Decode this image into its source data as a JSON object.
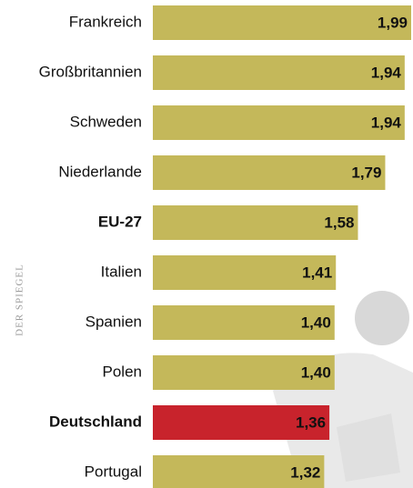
{
  "chart_data": {
    "type": "bar",
    "orientation": "horizontal",
    "source": "DER SPIEGEL",
    "categories": [
      "Frankreich",
      "Großbritannien",
      "Schweden",
      "Niederlande",
      "EU-27",
      "Italien",
      "Spanien",
      "Polen",
      "Deutschland",
      "Portugal"
    ],
    "values": [
      1.99,
      1.94,
      1.94,
      1.79,
      1.58,
      1.41,
      1.4,
      1.4,
      1.36,
      1.32
    ],
    "value_labels": [
      "1,99",
      "1,94",
      "1,94",
      "1,79",
      "1,58",
      "1,41",
      "1,40",
      "1,40",
      "1,36",
      "1,32"
    ],
    "colors": [
      "#c4b85a",
      "#c4b85a",
      "#c4b85a",
      "#c4b85a",
      "#c4b85a",
      "#c4b85a",
      "#c4b85a",
      "#c4b85a",
      "#c8232c",
      "#c4b85a"
    ],
    "bold": [
      false,
      false,
      false,
      false,
      true,
      false,
      false,
      false,
      true,
      false
    ]
  }
}
